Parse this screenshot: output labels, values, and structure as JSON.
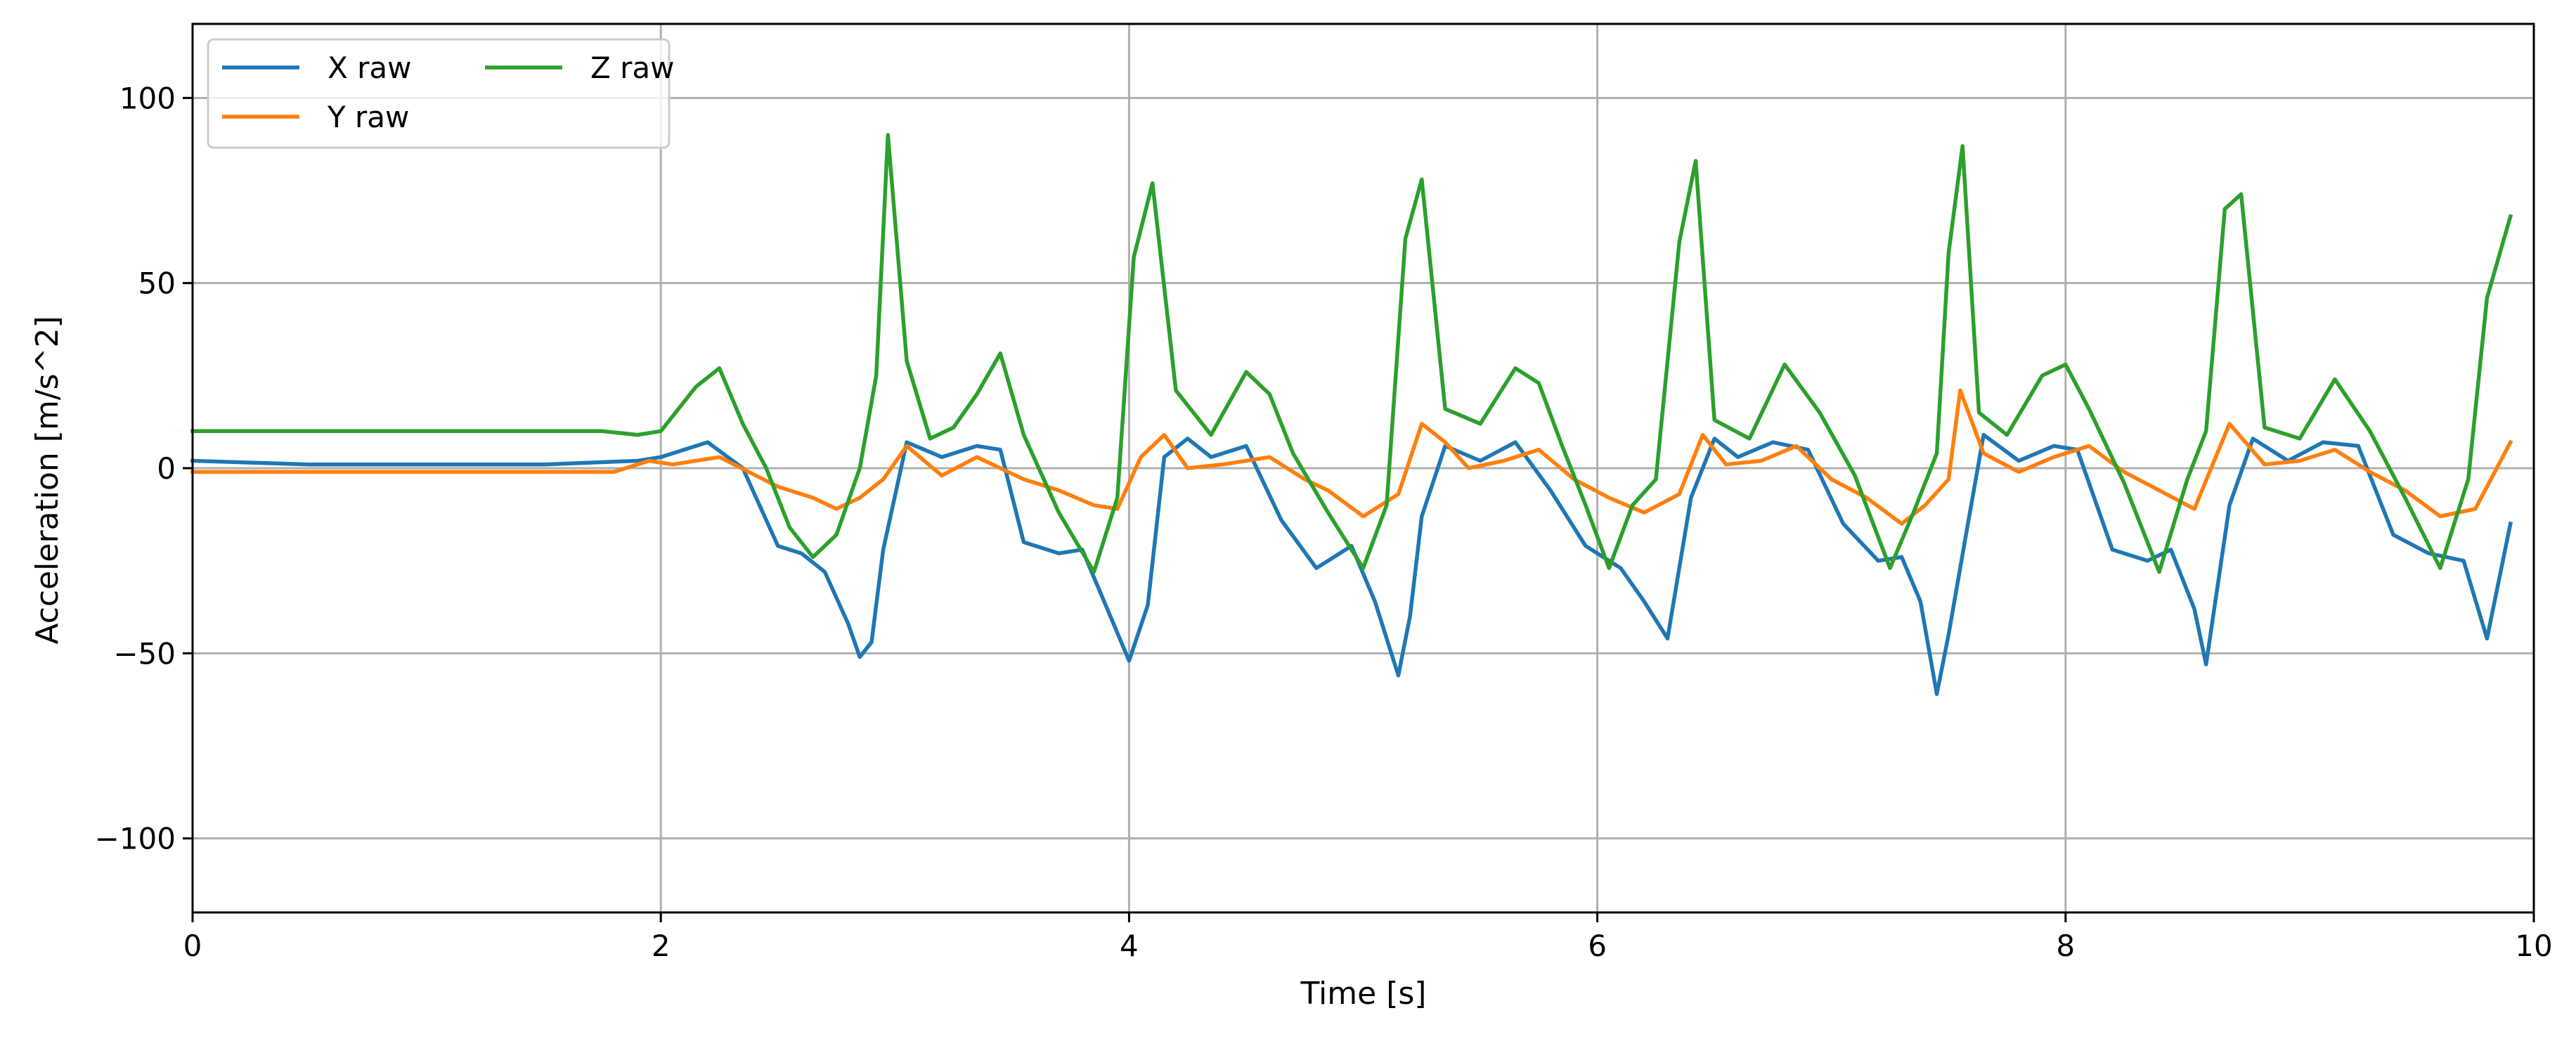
{
  "chart_data": {
    "type": "line",
    "title": "",
    "xlabel": "Time [s]",
    "ylabel": "Acceleration [m/s^2]",
    "xlim": [
      0,
      10
    ],
    "ylim": [
      -120,
      120
    ],
    "xticks": [
      0,
      2,
      4,
      6,
      8,
      10
    ],
    "xtick_labels": [
      "0",
      "2",
      "4",
      "6",
      "8",
      "10"
    ],
    "yticks": [
      -100,
      -50,
      0,
      50,
      100
    ],
    "ytick_labels": [
      "−100",
      "−50",
      "0",
      "50",
      "100"
    ],
    "grid": true,
    "legend": {
      "placement": "top-left",
      "columns": 2
    },
    "series": [
      {
        "name": "X raw",
        "color": "#1f77b4",
        "x": [
          0,
          0.5,
          1.0,
          1.5,
          1.9,
          2.0,
          2.2,
          2.35,
          2.5,
          2.6,
          2.7,
          2.8,
          2.85,
          2.9,
          2.95,
          3.05,
          3.2,
          3.35,
          3.45,
          3.55,
          3.7,
          3.8,
          3.92,
          4.0,
          4.08,
          4.15,
          4.25,
          4.35,
          4.5,
          4.65,
          4.8,
          4.95,
          5.05,
          5.15,
          5.2,
          5.25,
          5.35,
          5.5,
          5.65,
          5.8,
          5.95,
          6.1,
          6.2,
          6.3,
          6.4,
          6.5,
          6.6,
          6.75,
          6.9,
          7.05,
          7.2,
          7.3,
          7.38,
          7.45,
          7.5,
          7.58,
          7.65,
          7.8,
          7.95,
          8.05,
          8.2,
          8.35,
          8.45,
          8.55,
          8.6,
          8.7,
          8.8,
          8.95,
          9.1,
          9.25,
          9.4,
          9.55,
          9.7,
          9.8,
          9.9
        ],
        "y": [
          2,
          1,
          1,
          1,
          2,
          3,
          7,
          0,
          -21,
          -23,
          -28,
          -42,
          -51,
          -47,
          -22,
          7,
          3,
          6,
          5,
          -20,
          -23,
          -22,
          -40,
          -52,
          -37,
          3,
          8,
          3,
          6,
          -14,
          -27,
          -21,
          -36,
          -56,
          -40,
          -13,
          6,
          2,
          7,
          -6,
          -21,
          -27,
          -36,
          -46,
          -8,
          8,
          3,
          7,
          5,
          -15,
          -25,
          -24,
          -36,
          -61,
          -45,
          -16,
          9,
          2,
          6,
          5,
          -22,
          -25,
          -22,
          -38,
          -53,
          -10,
          8,
          2,
          7,
          6,
          -18,
          -23,
          -25,
          -46,
          -15
        ]
      },
      {
        "name": "Y raw",
        "color": "#ff7f0e",
        "x": [
          0,
          0.5,
          1.0,
          1.5,
          1.8,
          1.95,
          2.05,
          2.25,
          2.5,
          2.65,
          2.75,
          2.85,
          2.95,
          3.05,
          3.2,
          3.35,
          3.55,
          3.7,
          3.85,
          3.95,
          4.05,
          4.15,
          4.25,
          4.4,
          4.6,
          4.75,
          4.85,
          5.0,
          5.15,
          5.25,
          5.35,
          5.45,
          5.6,
          5.75,
          5.9,
          6.05,
          6.2,
          6.35,
          6.45,
          6.55,
          6.7,
          6.85,
          7.0,
          7.15,
          7.3,
          7.4,
          7.5,
          7.55,
          7.65,
          7.8,
          7.95,
          8.1,
          8.25,
          8.4,
          8.55,
          8.7,
          8.85,
          9.0,
          9.15,
          9.3,
          9.45,
          9.6,
          9.75,
          9.9
        ],
        "y": [
          -1,
          -1,
          -1,
          -1,
          -1,
          2,
          1,
          3,
          -5,
          -8,
          -11,
          -8,
          -3,
          6,
          -2,
          3,
          -3,
          -6,
          -10,
          -11,
          3,
          9,
          0,
          1,
          3,
          -3,
          -6,
          -13,
          -7,
          12,
          7,
          0,
          2,
          5,
          -3,
          -8,
          -12,
          -7,
          9,
          1,
          2,
          6,
          -3,
          -8,
          -15,
          -10,
          -3,
          21,
          4,
          -1,
          3,
          6,
          -1,
          -6,
          -11,
          12,
          1,
          2,
          5,
          -1,
          -6,
          -13,
          -11,
          7
        ]
      },
      {
        "name": "Z raw",
        "color": "#2ca02c",
        "x": [
          0,
          0.5,
          1.0,
          1.5,
          1.75,
          1.9,
          2.0,
          2.15,
          2.25,
          2.35,
          2.45,
          2.55,
          2.65,
          2.75,
          2.85,
          2.92,
          2.97,
          3.05,
          3.15,
          3.25,
          3.35,
          3.45,
          3.55,
          3.7,
          3.85,
          3.95,
          4.02,
          4.1,
          4.2,
          4.35,
          4.5,
          4.6,
          4.7,
          4.85,
          5.0,
          5.1,
          5.18,
          5.25,
          5.35,
          5.5,
          5.65,
          5.75,
          5.85,
          5.95,
          6.05,
          6.15,
          6.25,
          6.35,
          6.42,
          6.5,
          6.65,
          6.8,
          6.95,
          7.1,
          7.25,
          7.35,
          7.45,
          7.5,
          7.56,
          7.63,
          7.75,
          7.9,
          8.0,
          8.1,
          8.25,
          8.4,
          8.52,
          8.6,
          8.68,
          8.75,
          8.85,
          9.0,
          9.15,
          9.3,
          9.45,
          9.6,
          9.72,
          9.8,
          9.9
        ],
        "y": [
          10,
          10,
          10,
          10,
          10,
          9,
          10,
          22,
          27,
          12,
          0,
          -16,
          -24,
          -18,
          0,
          25,
          90,
          29,
          8,
          11,
          20,
          31,
          9,
          -12,
          -28,
          -8,
          57,
          77,
          21,
          9,
          26,
          20,
          4,
          -12,
          -27,
          -10,
          62,
          78,
          16,
          12,
          27,
          23,
          6,
          -10,
          -27,
          -10,
          -3,
          61,
          83,
          13,
          8,
          28,
          15,
          -2,
          -27,
          -12,
          4,
          58,
          87,
          15,
          9,
          25,
          28,
          16,
          -4,
          -28,
          -3,
          10,
          70,
          74,
          11,
          8,
          24,
          10,
          -8,
          -27,
          -3,
          46,
          68
        ]
      }
    ]
  }
}
